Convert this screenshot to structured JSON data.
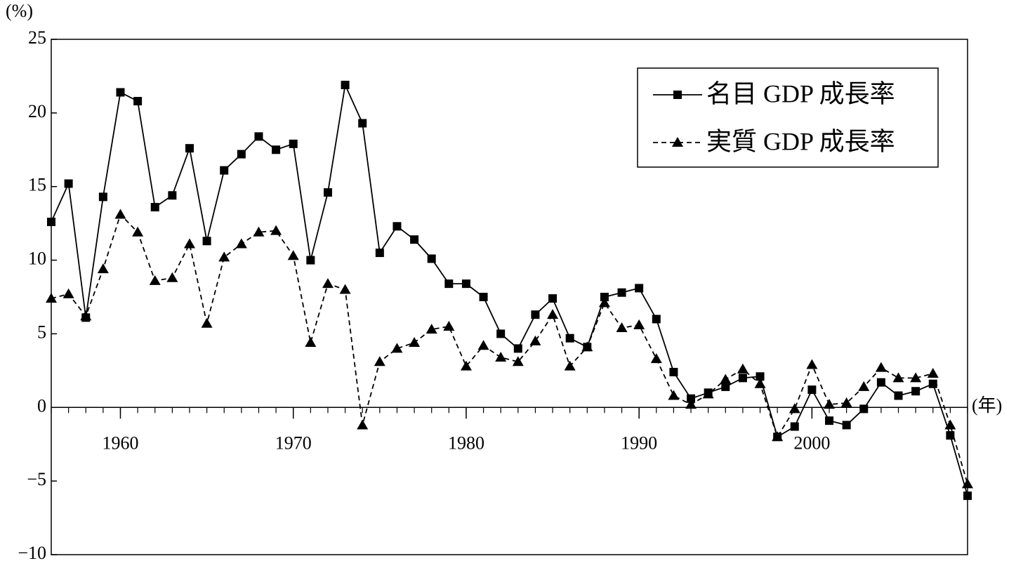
{
  "chart_data": {
    "type": "line",
    "y_unit_label": "(%)",
    "x_unit_label": "(年)",
    "x": [
      1956,
      1957,
      1958,
      1959,
      1960,
      1961,
      1962,
      1963,
      1964,
      1965,
      1966,
      1967,
      1968,
      1969,
      1970,
      1971,
      1972,
      1973,
      1974,
      1975,
      1976,
      1977,
      1978,
      1979,
      1980,
      1981,
      1982,
      1983,
      1984,
      1985,
      1986,
      1987,
      1988,
      1989,
      1990,
      1991,
      1992,
      1993,
      1994,
      1995,
      1996,
      1997,
      1998,
      1999,
      2000,
      2001,
      2002,
      2003,
      2004,
      2005,
      2006,
      2007,
      2008,
      2009
    ],
    "series": [
      {
        "name": "名目 GDP 成長率",
        "color": "#000000",
        "marker": "square",
        "dash": false,
        "values": [
          12.6,
          15.2,
          6.1,
          14.3,
          21.4,
          20.8,
          13.6,
          14.4,
          17.6,
          11.3,
          16.1,
          17.2,
          18.4,
          17.5,
          17.9,
          10.0,
          14.6,
          21.9,
          19.3,
          10.5,
          12.3,
          11.4,
          10.1,
          8.4,
          8.4,
          7.5,
          5.0,
          4.0,
          6.3,
          7.4,
          4.7,
          4.1,
          7.5,
          7.8,
          8.1,
          6.0,
          2.4,
          0.6,
          1.0,
          1.4,
          2.0,
          2.1,
          -2.0,
          -1.3,
          1.2,
          -0.9,
          -1.2,
          -0.1,
          1.7,
          0.8,
          1.1,
          1.6,
          -1.9,
          -6.0
        ]
      },
      {
        "name": "実質 GDP 成長率",
        "color": "#000000",
        "marker": "triangle",
        "dash": true,
        "values": [
          7.4,
          7.7,
          6.2,
          9.4,
          13.1,
          11.9,
          8.6,
          8.8,
          11.1,
          5.7,
          10.2,
          11.1,
          11.9,
          12.0,
          10.3,
          4.4,
          8.4,
          8.0,
          -1.2,
          3.1,
          4.0,
          4.4,
          5.3,
          5.5,
          2.8,
          4.2,
          3.4,
          3.1,
          4.5,
          6.3,
          2.8,
          4.1,
          7.1,
          5.4,
          5.6,
          3.3,
          0.8,
          0.2,
          0.9,
          1.9,
          2.6,
          1.6,
          -2.0,
          -0.1,
          2.9,
          0.2,
          0.3,
          1.4,
          2.7,
          2.0,
          2.0,
          2.3,
          -1.2,
          -5.2
        ]
      }
    ],
    "xlim": [
      1956,
      2009
    ],
    "xticks": [
      1960,
      1970,
      1980,
      1990,
      2000
    ],
    "ylim": [
      -10,
      25
    ],
    "yticks": [
      {
        "value": -10,
        "label": "−10"
      },
      {
        "value": -5,
        "label": "−5"
      },
      0,
      5,
      10,
      15,
      20,
      25
    ],
    "legend": "upper right"
  }
}
